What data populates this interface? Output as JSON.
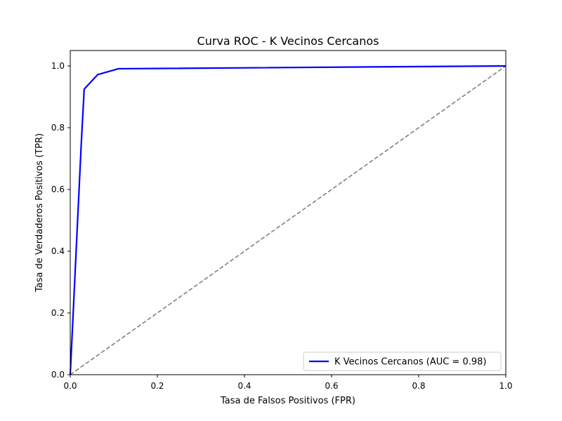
{
  "chart_data": {
    "type": "line",
    "title": "Curva ROC - K Vecinos Cercanos",
    "xlabel": "Tasa de Falsos Positivos (FPR)",
    "ylabel": "Tasa de Verdaderos Positivos (TPR)",
    "xlim": [
      0.0,
      1.0
    ],
    "ylim": [
      0.0,
      1.05
    ],
    "xticks": [
      "0.0",
      "0.2",
      "0.4",
      "0.6",
      "0.8",
      "1.0"
    ],
    "yticks": [
      "0.0",
      "0.2",
      "0.4",
      "0.6",
      "0.8",
      "1.0"
    ],
    "grid": false,
    "legend_position": "lower-right",
    "series": [
      {
        "name": "K Vecinos Cercanos (AUC = 0.98)",
        "color": "#0000ff",
        "style": "solid",
        "x": [
          0.0,
          0.025,
          0.032,
          0.063,
          0.111,
          1.0
        ],
        "y": [
          0.0,
          0.74,
          0.925,
          0.972,
          0.991,
          1.0
        ]
      },
      {
        "color": "#808080",
        "style": "dashed",
        "x": [
          0.0,
          1.0
        ],
        "y": [
          0.0,
          1.0
        ]
      }
    ]
  }
}
